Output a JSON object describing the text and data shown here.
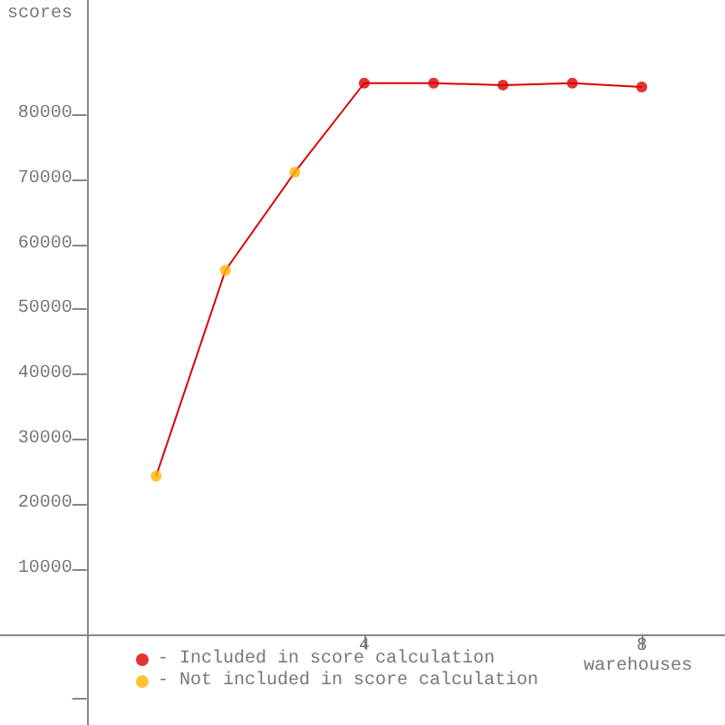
{
  "chart_data": {
    "type": "line",
    "xlabel": "warehouses",
    "ylabel": "scores",
    "xlim": [
      -1.25,
      9.2
    ],
    "ylim": [
      -14000,
      97600
    ],
    "xticks": [
      4,
      8
    ],
    "yticks": [
      {
        "value": -10000,
        "label": null
      },
      10000,
      20000,
      30000,
      40000,
      50000,
      60000,
      70000,
      80000
    ],
    "series": [
      {
        "color": "#dd0000",
        "marker": "none",
        "x": [
          1,
          2,
          3,
          4,
          5,
          6,
          7,
          8
        ],
        "values": [
          24300,
          56000,
          71100,
          84800,
          84800,
          84500,
          84800,
          84200
        ]
      },
      {
        "type": "scatter",
        "name": "- Included in score calculation",
        "color": "#dd0000",
        "marker": "circle",
        "x": [
          4,
          5,
          6,
          7,
          8
        ],
        "values": [
          84800,
          84800,
          84500,
          84800,
          84200
        ]
      },
      {
        "type": "scatter",
        "name": "- Not included in score calculation",
        "color": "#ffb400",
        "marker": "circle",
        "x": [
          1,
          2,
          3
        ],
        "values": [
          24300,
          56000,
          71100
        ]
      }
    ],
    "grid": false,
    "legend": "bottom left"
  }
}
